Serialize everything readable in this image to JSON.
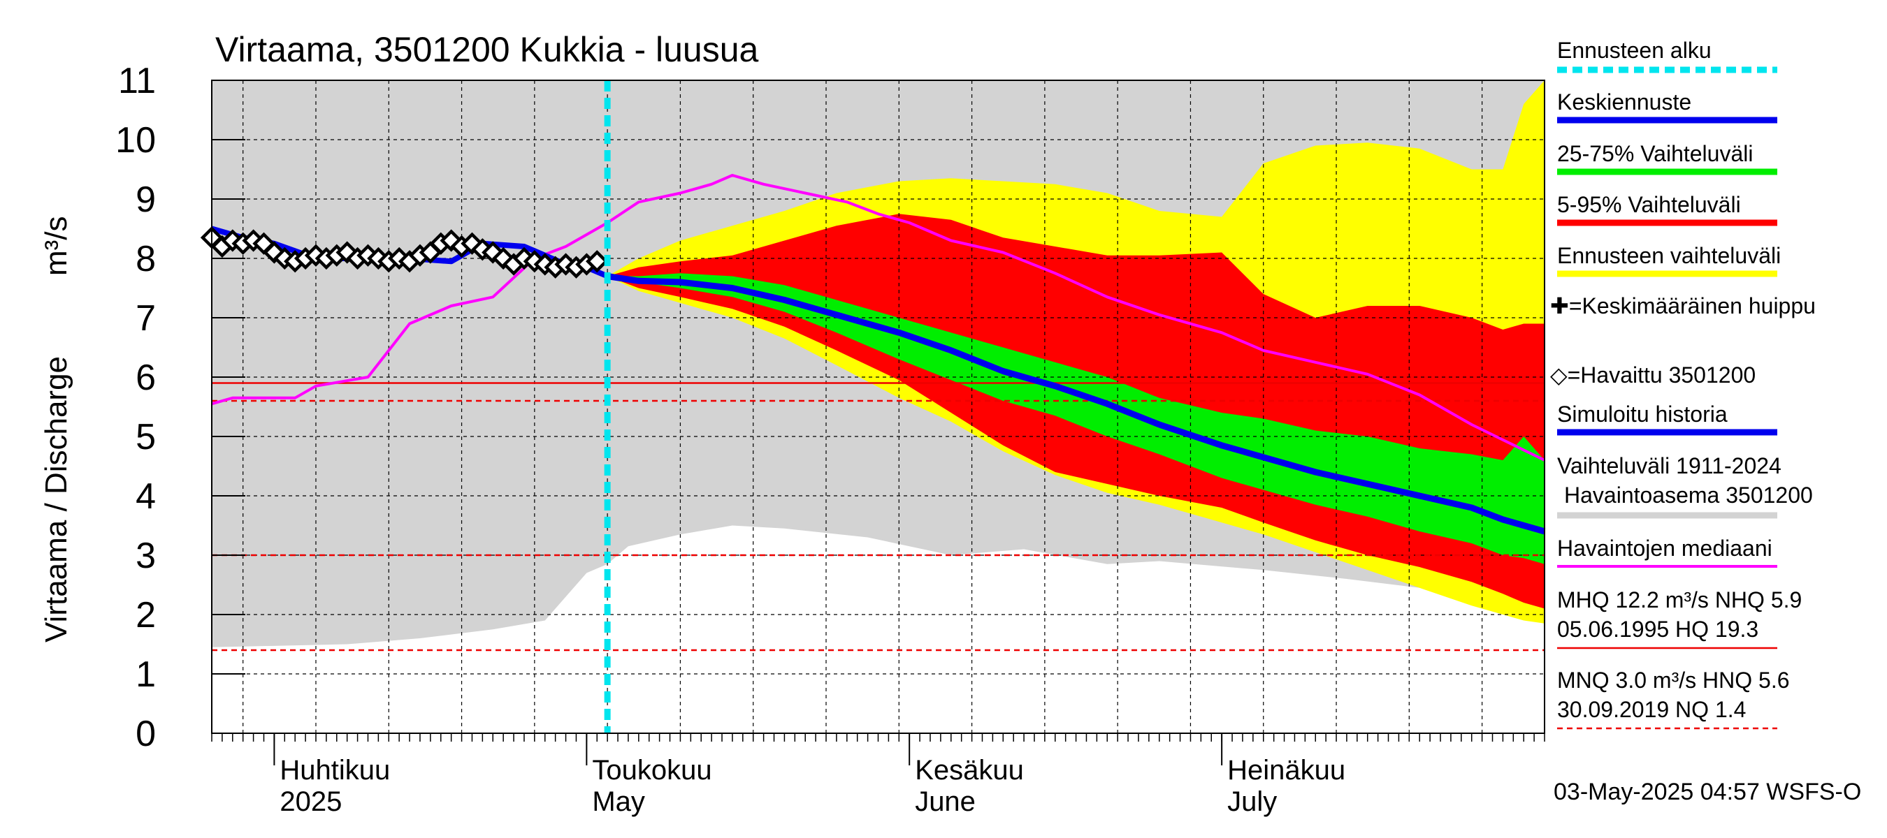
{
  "chart_data": {
    "type": "area",
    "title": "Virtaama, 3501200 Kukkia - luusua",
    "ylabel": "Virtaama / Discharge",
    "yunit": "m³/s",
    "ylim": [
      0,
      11
    ],
    "yticks": [
      0,
      1,
      2,
      3,
      4,
      5,
      6,
      7,
      8,
      9,
      10,
      11
    ],
    "xlim": [
      "2025-03-26",
      "2025-08-01"
    ],
    "x_labels": [
      {
        "line1": "Huhtikuu",
        "line2": "2025",
        "date": "2025-04-01"
      },
      {
        "line1": "Toukokuu",
        "line2": "May",
        "date": "2025-05-01"
      },
      {
        "line1": "Kesäkuu",
        "line2": "June",
        "date": "2025-06-01"
      },
      {
        "line1": "Heinäkuu",
        "line2": "July",
        "date": "2025-07-01"
      }
    ],
    "forecast_start": "2025-05-03",
    "colors": {
      "history_range": "#d3d3d3",
      "forecast_range": "#ffff00",
      "p5_95": "#ff0000",
      "p25_75": "#00ee00",
      "mean_forecast": "#0000ee",
      "simulated": "#0000ee",
      "median": "#ff00ff",
      "forecast_start": "#00e5ee",
      "threshold_lines": "#ee0000"
    },
    "reference_lines": [
      {
        "name": "HNQ",
        "value": 5.6,
        "style": "dashed"
      },
      {
        "name": "NHQ",
        "value": 5.9,
        "style": "solid"
      },
      {
        "name": "MNQ",
        "value": 3.0,
        "style": "dashed"
      },
      {
        "name": "NQ",
        "value": 1.4,
        "style": "dashed"
      }
    ],
    "history_range_bands": {
      "dates": [
        "2025-03-26",
        "2025-04-08",
        "2025-04-15",
        "2025-04-22",
        "2025-04-27",
        "2025-05-01",
        "2025-05-03",
        "2025-05-05",
        "2025-05-10",
        "2025-05-15",
        "2025-05-20",
        "2025-05-28",
        "2025-06-05",
        "2025-06-12",
        "2025-06-20",
        "2025-06-25",
        "2025-07-05",
        "2025-07-13",
        "2025-07-20",
        "2025-07-25",
        "2025-08-01"
      ],
      "upper": [
        11,
        11,
        11,
        11,
        11,
        11,
        11,
        11,
        11,
        11,
        11,
        11,
        11,
        11,
        11,
        11,
        11,
        11,
        11,
        11,
        11
      ],
      "lower": [
        1.45,
        1.5,
        1.6,
        1.75,
        1.9,
        2.7,
        2.85,
        3.15,
        3.35,
        3.5,
        3.45,
        3.3,
        3.0,
        3.1,
        2.85,
        2.9,
        2.75,
        2.6,
        2.45,
        2.35,
        2.2
      ]
    },
    "forecast_bands": {
      "dates": [
        "2025-05-03",
        "2025-05-06",
        "2025-05-10",
        "2025-05-15",
        "2025-05-20",
        "2025-05-25",
        "2025-05-31",
        "2025-06-05",
        "2025-06-10",
        "2025-06-15",
        "2025-06-20",
        "2025-06-25",
        "2025-07-01",
        "2025-07-05",
        "2025-07-10",
        "2025-07-15",
        "2025-07-20",
        "2025-07-25",
        "2025-07-28",
        "2025-07-30",
        "2025-08-01"
      ],
      "p95": [
        7.7,
        7.85,
        7.95,
        8.05,
        8.3,
        8.55,
        8.75,
        8.65,
        8.35,
        8.2,
        8.05,
        8.05,
        8.1,
        7.4,
        7.0,
        7.2,
        7.2,
        7.0,
        6.8,
        6.9,
        6.9
      ],
      "p75": [
        7.7,
        7.7,
        7.75,
        7.7,
        7.55,
        7.3,
        7.0,
        6.75,
        6.5,
        6.25,
        6.0,
        5.65,
        5.4,
        5.3,
        5.1,
        5.0,
        4.8,
        4.7,
        4.6,
        5.0,
        4.6
      ],
      "p25": [
        7.7,
        7.6,
        7.5,
        7.35,
        7.1,
        6.75,
        6.3,
        5.95,
        5.6,
        5.35,
        5.0,
        4.7,
        4.3,
        4.1,
        3.85,
        3.65,
        3.4,
        3.2,
        3.0,
        2.95,
        2.85
      ],
      "p5": [
        7.7,
        7.5,
        7.35,
        7.15,
        6.85,
        6.45,
        5.95,
        5.4,
        4.85,
        4.4,
        4.2,
        4.0,
        3.8,
        3.55,
        3.25,
        3.0,
        2.8,
        2.55,
        2.35,
        2.2,
        2.1
      ],
      "max": [
        7.7,
        8.0,
        8.3,
        8.55,
        8.8,
        9.1,
        9.3,
        9.35,
        9.3,
        9.25,
        9.1,
        8.8,
        8.7,
        9.6,
        9.9,
        9.95,
        9.85,
        9.5,
        9.5,
        10.6,
        11.0
      ],
      "min": [
        7.7,
        7.45,
        7.25,
        7.0,
        6.65,
        6.2,
        5.65,
        5.25,
        4.75,
        4.35,
        4.05,
        3.85,
        3.55,
        3.35,
        3.05,
        2.75,
        2.45,
        2.15,
        2.0,
        1.9,
        1.85
      ]
    },
    "series": [
      {
        "name": "Keskiennuste",
        "x": [
          "2025-05-03",
          "2025-05-06",
          "2025-05-10",
          "2025-05-15",
          "2025-05-20",
          "2025-05-25",
          "2025-05-31",
          "2025-06-05",
          "2025-06-10",
          "2025-06-15",
          "2025-06-20",
          "2025-06-25",
          "2025-07-01",
          "2025-07-05",
          "2025-07-10",
          "2025-07-15",
          "2025-07-20",
          "2025-07-25",
          "2025-07-28",
          "2025-07-30",
          "2025-08-01"
        ],
        "y": [
          7.7,
          7.62,
          7.6,
          7.5,
          7.3,
          7.05,
          6.75,
          6.45,
          6.1,
          5.85,
          5.55,
          5.2,
          4.85,
          4.65,
          4.4,
          4.2,
          4.0,
          3.8,
          3.6,
          3.5,
          3.4
        ]
      },
      {
        "name": "Simuloitu historia",
        "x": [
          "2025-03-26",
          "2025-03-29",
          "2025-04-01",
          "2025-04-05",
          "2025-04-10",
          "2025-04-14",
          "2025-04-18",
          "2025-04-21",
          "2025-04-25",
          "2025-04-29",
          "2025-05-01",
          "2025-05-03"
        ],
        "y": [
          8.5,
          8.35,
          8.25,
          8.0,
          8.0,
          8.0,
          7.95,
          8.25,
          8.2,
          7.9,
          7.85,
          7.7
        ]
      },
      {
        "name": "Havaintojen mediaani",
        "x": [
          "2025-03-26",
          "2025-03-28",
          "2025-04-03",
          "2025-04-05",
          "2025-04-10",
          "2025-04-14",
          "2025-04-18",
          "2025-04-22",
          "2025-04-26",
          "2025-04-29",
          "2025-05-01",
          "2025-05-03",
          "2025-05-06",
          "2025-05-10",
          "2025-05-13",
          "2025-05-15",
          "2025-05-18",
          "2025-05-22",
          "2025-05-26",
          "2025-05-29",
          "2025-06-01",
          "2025-06-05",
          "2025-06-10",
          "2025-06-15",
          "2025-06-20",
          "2025-06-25",
          "2025-07-01",
          "2025-07-05",
          "2025-07-10",
          "2025-07-15",
          "2025-07-20",
          "2025-07-25",
          "2025-08-01"
        ],
        "y": [
          5.55,
          5.65,
          5.65,
          5.85,
          6.0,
          6.9,
          7.2,
          7.35,
          8.0,
          8.2,
          8.4,
          8.6,
          8.95,
          9.1,
          9.25,
          9.4,
          9.25,
          9.1,
          8.95,
          8.75,
          8.6,
          8.3,
          8.1,
          7.75,
          7.35,
          7.05,
          6.75,
          6.45,
          6.25,
          6.05,
          5.7,
          5.2,
          4.6
        ]
      },
      {
        "name": "Havaittu 3501200",
        "x": [
          "2025-03-26",
          "2025-03-27",
          "2025-03-28",
          "2025-03-29",
          "2025-03-30",
          "2025-03-31",
          "2025-04-01",
          "2025-04-02",
          "2025-04-03",
          "2025-04-04",
          "2025-04-05",
          "2025-04-06",
          "2025-04-07",
          "2025-04-08",
          "2025-04-09",
          "2025-04-10",
          "2025-04-11",
          "2025-04-12",
          "2025-04-13",
          "2025-04-14",
          "2025-04-15",
          "2025-04-16",
          "2025-04-17",
          "2025-04-18",
          "2025-04-19",
          "2025-04-20",
          "2025-04-21",
          "2025-04-22",
          "2025-04-23",
          "2025-04-24",
          "2025-04-25",
          "2025-04-26",
          "2025-04-27",
          "2025-04-28",
          "2025-04-29",
          "2025-04-30",
          "2025-05-01",
          "2025-05-02"
        ],
        "y": [
          8.35,
          8.2,
          8.3,
          8.25,
          8.3,
          8.25,
          8.1,
          8.0,
          7.95,
          8.0,
          8.05,
          8.0,
          8.05,
          8.1,
          8.0,
          8.05,
          8.0,
          7.95,
          8.0,
          7.95,
          8.05,
          8.1,
          8.25,
          8.3,
          8.2,
          8.25,
          8.15,
          8.1,
          8.0,
          7.9,
          8.0,
          7.95,
          7.9,
          7.85,
          7.9,
          7.85,
          7.9,
          7.95
        ]
      }
    ],
    "legend": [
      {
        "label": "Ennusteen alku",
        "style": "dotted",
        "color": "#00e5ee"
      },
      {
        "label": "Keskiennuste",
        "style": "line",
        "color": "#0000ee"
      },
      {
        "label": "25-75% Vaihteluväli",
        "style": "line",
        "color": "#00ee00"
      },
      {
        "label": "5-95% Vaihteluväli",
        "style": "line",
        "color": "#ff0000"
      },
      {
        "label": "Ennusteen vaihteluväli",
        "style": "line",
        "color": "#ffff00"
      },
      {
        "label": "✚=Keskimääräinen huippu",
        "style": "none",
        "color": "#000000"
      },
      {
        "label": "◇=Havaittu 3501200",
        "style": "none",
        "color": "#000000"
      },
      {
        "label": "Simuloitu historia",
        "style": "line",
        "color": "#0000ee"
      },
      {
        "label": "Vaihteluväli 1911-2024 Havaintoasema 3501200",
        "style": "line",
        "color": "#d3d3d3"
      },
      {
        "label": "Havaintojen mediaani",
        "style": "line",
        "color": "#ff00ff"
      },
      {
        "label": "MHQ 12.2 m³/s NHQ 5.9 05.06.1995 HQ 19.3",
        "style": "solid",
        "color": "#ee0000"
      },
      {
        "label": "MNQ 3.0 m³/s HNQ 5.6 30.09.2019 NQ 1.4",
        "style": "dashed",
        "color": "#ee0000"
      }
    ],
    "footer": "03-May-2025 04:57 WSFS-O"
  }
}
